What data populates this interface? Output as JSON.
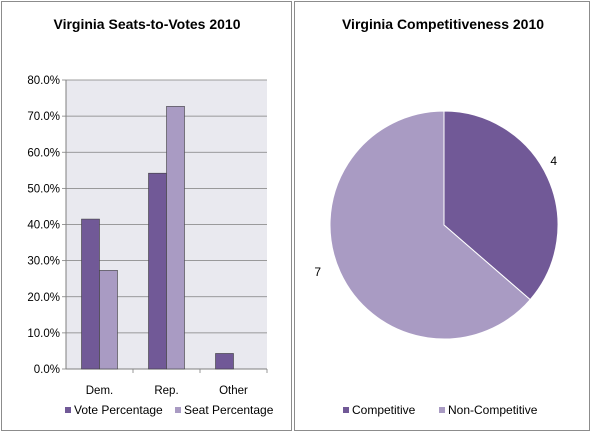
{
  "colors": {
    "series_1": "#715997",
    "series_2": "#a99bc3",
    "plot_bg": "#e9e9ef",
    "grid": "#7f7f7f",
    "bar_stroke": "#3f3f3f"
  },
  "chart_data": [
    {
      "type": "bar",
      "title": "Virginia Seats-to-Votes 2010",
      "xlabel": "",
      "ylabel": "",
      "categories": [
        "Dem.",
        "Rep.",
        "Other"
      ],
      "ylim": [
        0,
        80
      ],
      "yticks": [
        "0.0%",
        "10.0%",
        "20.0%",
        "30.0%",
        "40.0%",
        "50.0%",
        "60.0%",
        "70.0%",
        "80.0%"
      ],
      "grid": true,
      "legend_position": "bottom",
      "series": [
        {
          "name": "Vote Percentage",
          "values": [
            41.5,
            54.2,
            4.3
          ]
        },
        {
          "name": "Seat Percentage",
          "values": [
            27.3,
            72.7,
            0
          ]
        }
      ]
    },
    {
      "type": "pie",
      "title": "Virginia Competitiveness 2010",
      "legend_position": "bottom",
      "slices": [
        {
          "name": "Competitive",
          "value": 4,
          "label": "4"
        },
        {
          "name": "Non-Competitive",
          "value": 7,
          "label": "7"
        }
      ]
    }
  ]
}
